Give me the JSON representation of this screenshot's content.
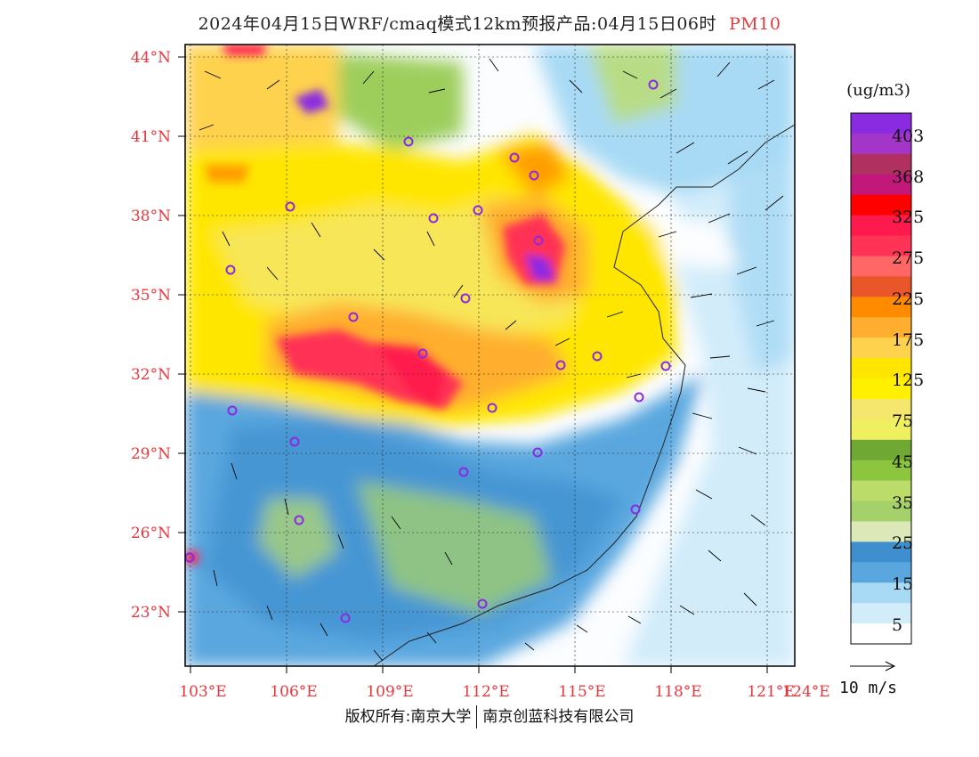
{
  "title": {
    "main": "2024年04月15日WRF/cmaq模式12km预报产品:04月15日06时",
    "pollutant": "PM10"
  },
  "map": {
    "lat_labels": [
      "44°N",
      "41°N",
      "38°N",
      "35°N",
      "32°N",
      "29°N",
      "26°N",
      "23°N"
    ],
    "lon_labels": [
      "103°E",
      "106°E",
      "109°E",
      "112°E",
      "115°E",
      "118°E",
      "121°E",
      "124°E"
    ],
    "label_color": "#e8383d",
    "station_marker_color": "#8a2be2"
  },
  "colorbar": {
    "unit": "(ug/m3)",
    "tick_labels": [
      "403",
      "368",
      "325",
      "275",
      "225",
      "175",
      "125",
      "75",
      "45",
      "35",
      "25",
      "15",
      "5"
    ],
    "colors": [
      "#8a2be2",
      "#a335c9",
      "#b03060",
      "#c2187a",
      "#ff0000",
      "#ff1a4d",
      "#ff3355",
      "#ff6666",
      "#e8562a",
      "#ff8c00",
      "#ffae2f",
      "#ffd24d",
      "#ffe600",
      "#fff000",
      "#f5e66e",
      "#eef060",
      "#6fa832",
      "#8cc63f",
      "#bcdc6a",
      "#a5d16b",
      "#dde8b8",
      "#3f8fcf",
      "#5aa7df",
      "#a8daf5",
      "#d2ecfa",
      "#ffffff"
    ]
  },
  "wind_legend": {
    "label": "10 m/s"
  },
  "footer": {
    "left": "版权所有:南京大学",
    "right": "南京创蓝科技有限公司"
  }
}
